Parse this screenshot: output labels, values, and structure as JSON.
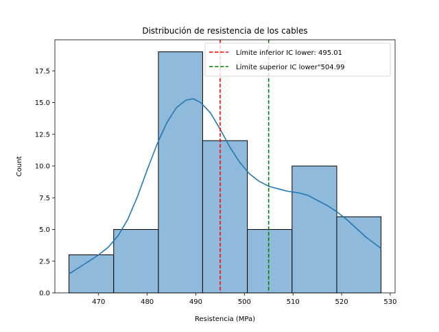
{
  "chart_data": {
    "type": "histogram",
    "title": "Distribución de resistencia de los cables",
    "xlabel": "Resistencia (MPa)",
    "ylabel": "Count",
    "xlim": [
      461,
      531
    ],
    "ylim": [
      0,
      19.95
    ],
    "x_ticks": [
      470,
      480,
      490,
      500,
      510,
      520,
      530
    ],
    "x_tick_labels": [
      "470",
      "480",
      "490",
      "500",
      "510",
      "520",
      "530"
    ],
    "y_ticks": [
      0,
      2.5,
      5,
      7.5,
      10,
      12.5,
      15,
      17.5
    ],
    "y_tick_labels": [
      "0.0",
      "2.5",
      "5.0",
      "7.5",
      "10.0",
      "12.5",
      "15.0",
      "17.5"
    ],
    "grid": false,
    "bins": [
      {
        "start": 463.9,
        "end": 473.1,
        "count": 3
      },
      {
        "start": 473.1,
        "end": 482.3,
        "count": 5
      },
      {
        "start": 482.3,
        "end": 491.4,
        "count": 19
      },
      {
        "start": 491.4,
        "end": 500.6,
        "count": 12
      },
      {
        "start": 500.6,
        "end": 509.8,
        "count": 5
      },
      {
        "start": 509.8,
        "end": 519.0,
        "count": 10
      },
      {
        "start": 519.0,
        "end": 528.1,
        "count": 6
      }
    ],
    "bar_color": "#8fbadb",
    "bar_edge_color": "#000000",
    "kde": {
      "color": "#1f77b4",
      "x": [
        463.9,
        466,
        468,
        470,
        472,
        474,
        476,
        478,
        480,
        482,
        484,
        486,
        488,
        489.5,
        491,
        493,
        495,
        497,
        499,
        501,
        503,
        505,
        507,
        509,
        511,
        513,
        515,
        517,
        519,
        521,
        523,
        525,
        528.1
      ],
      "y": [
        1.5,
        2.0,
        2.5,
        3.0,
        3.6,
        4.5,
        5.8,
        7.6,
        9.7,
        11.7,
        13.4,
        14.6,
        15.2,
        15.3,
        15.0,
        14.2,
        12.9,
        11.5,
        10.3,
        9.4,
        8.8,
        8.4,
        8.2,
        8.0,
        7.9,
        7.7,
        7.3,
        6.9,
        6.4,
        5.8,
        5.1,
        4.4,
        3.5
      ]
    },
    "vlines": [
      {
        "x": 495.01,
        "color": "#ff0000",
        "label": "Límite inferior IC lower: 495.01"
      },
      {
        "x": 504.99,
        "color": "#008000",
        "label": "Límite superior IC lower\"504.99"
      }
    ],
    "legend_position": "top-right"
  }
}
